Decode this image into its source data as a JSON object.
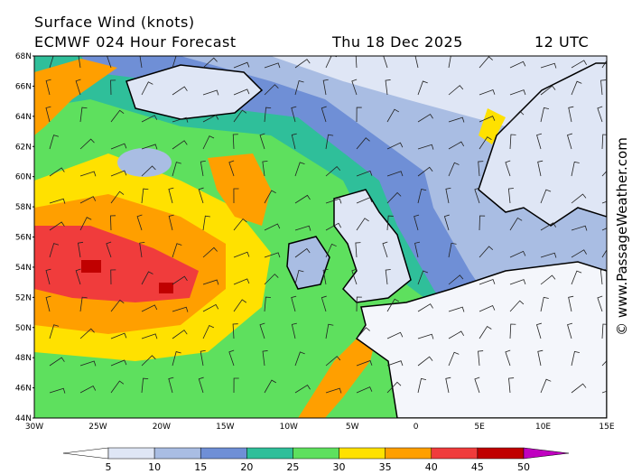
{
  "header": {
    "title": "Surface Wind (knots)",
    "model": "ECMWF 024 Hour Forecast",
    "date": "Thu 18 Dec 2025",
    "time": "12 UTC"
  },
  "latitude_labels": [
    "68N",
    "66N",
    "64N",
    "62N",
    "60N",
    "58N",
    "56N",
    "54N",
    "52N",
    "50N",
    "48N",
    "46N",
    "44N"
  ],
  "longitude_labels": [
    "30W",
    "25W",
    "20W",
    "15W",
    "10W",
    "5W",
    "0",
    "5E",
    "10E",
    "15E"
  ],
  "colorbar": {
    "labels": [
      5,
      10,
      15,
      20,
      25,
      30,
      35,
      40,
      45,
      50
    ],
    "colors": [
      "#ffffff",
      "#dfe6f5",
      "#a9bde3",
      "#6f8fd6",
      "#2fbf9a",
      "#5ee05e",
      "#ffe100",
      "#ff9f00",
      "#f03c3c",
      "#c00000",
      "#c000c0"
    ]
  },
  "watermark": "© www.PassageWeather.com"
}
